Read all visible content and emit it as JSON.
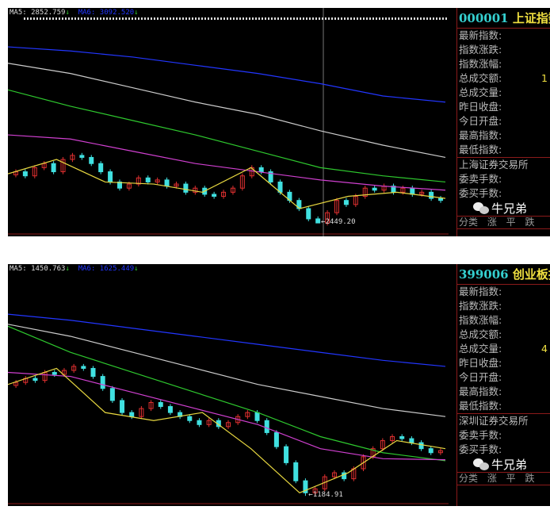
{
  "panels": [
    {
      "ma5_label": "MA5: 2852.759",
      "ma5_arrow": "↓",
      "ma6_label": "MA6: 3092.520",
      "ma6_arrow": "↓",
      "low_label": "2449.20",
      "code": "000001",
      "name": "上证指数",
      "fields": [
        {
          "label": "最新指数:",
          "value": ""
        },
        {
          "label": "指数涨跌:",
          "value": ""
        },
        {
          "label": "指数涨幅:",
          "value": ""
        },
        {
          "label": "总成交额:",
          "value": "1"
        },
        {
          "label": "总成交量:",
          "value": ""
        },
        {
          "label": "昨日收盘:",
          "value": ""
        },
        {
          "label": "今日开盘:",
          "value": ""
        },
        {
          "label": "最高指数:",
          "value": ""
        },
        {
          "label": "最低指数:",
          "value": ""
        }
      ],
      "exchange": "上海证券交易所",
      "orders": [
        "委卖手数:",
        "委买手数:"
      ],
      "table_header": "分类 涨 平 跌",
      "chart_data": {
        "type": "candlestick",
        "ylim": [
          2400,
          3500
        ],
        "low": 2449.2,
        "closes": [
          2700,
          2680,
          2720,
          2740,
          2700,
          2760,
          2780,
          2770,
          2740,
          2700,
          2650,
          2620,
          2640,
          2670,
          2650,
          2660,
          2630,
          2640,
          2600,
          2620,
          2590,
          2580,
          2600,
          2620,
          2680,
          2720,
          2700,
          2650,
          2600,
          2560,
          2520,
          2470,
          2450,
          2500,
          2560,
          2540,
          2580,
          2620,
          2610,
          2630,
          2600,
          2620,
          2590,
          2600,
          2570,
          2560
        ],
        "ma_blue": [
          3310,
          3290,
          3260,
          3220,
          3180,
          3130,
          3070,
          3040
        ],
        "ma_white": [
          3230,
          3180,
          3110,
          3040,
          2980,
          2900,
          2830,
          2770
        ],
        "ma_green": [
          3100,
          3020,
          2950,
          2880,
          2800,
          2720,
          2680,
          2650
        ],
        "ma_magenta": [
          2880,
          2860,
          2800,
          2740,
          2700,
          2660,
          2630,
          2610
        ],
        "ma_yellow": [
          2690,
          2760,
          2650,
          2640,
          2600,
          2720,
          2520,
          2580,
          2600,
          2570
        ]
      }
    },
    {
      "ma5_label": "MA5: 1450.763",
      "ma5_arrow": "↓",
      "ma6_label": "MA6: 1625.449",
      "ma6_arrow": "↓",
      "low_label": "1184.91",
      "code": "399006",
      "name": "创业板指",
      "fields": [
        {
          "label": "最新指数:",
          "value": ""
        },
        {
          "label": "指数涨跌:",
          "value": ""
        },
        {
          "label": "指数涨幅:",
          "value": ""
        },
        {
          "label": "总成交额:",
          "value": ""
        },
        {
          "label": "总成交量:",
          "value": "4"
        },
        {
          "label": "昨日收盘:",
          "value": ""
        },
        {
          "label": "今日开盘:",
          "value": ""
        },
        {
          "label": "最高指数:",
          "value": ""
        },
        {
          "label": "最低指数:",
          "value": ""
        }
      ],
      "exchange": "深圳证券交易所",
      "orders": [
        "委卖手数:",
        "委买手数:"
      ],
      "table_header": "分类 涨 平 跌",
      "chart_data": {
        "type": "candlestick",
        "ylim": [
          1150,
          2300
        ],
        "low": 1184.91,
        "closes": [
          1750,
          1770,
          1760,
          1800,
          1790,
          1810,
          1830,
          1820,
          1780,
          1720,
          1660,
          1600,
          1580,
          1620,
          1650,
          1630,
          1600,
          1580,
          1560,
          1540,
          1560,
          1530,
          1550,
          1580,
          1600,
          1560,
          1500,
          1430,
          1350,
          1260,
          1200,
          1220,
          1280,
          1300,
          1270,
          1320,
          1380,
          1420,
          1460,
          1480,
          1470,
          1450,
          1420,
          1400,
          1410
        ],
        "ma_blue": [
          2090,
          2060,
          2020,
          1980,
          1940,
          1900,
          1860,
          1830
        ],
        "ma_white": [
          2040,
          1980,
          1900,
          1820,
          1740,
          1680,
          1620,
          1580
        ],
        "ma_green": [
          2030,
          1900,
          1800,
          1700,
          1600,
          1480,
          1400,
          1360
        ],
        "ma_magenta": [
          1800,
          1780,
          1700,
          1620,
          1540,
          1420,
          1370,
          1365
        ],
        "ma_yellow": [
          1740,
          1820,
          1600,
          1560,
          1600,
          1420,
          1200,
          1300,
          1460,
          1420
        ]
      }
    }
  ],
  "watermark": "牛兄弟",
  "colors": {
    "blue": "#2236ff",
    "white": "#cccccc",
    "green": "#2ec82e",
    "magenta": "#d040d0",
    "yellow": "#e8d840",
    "up": "#e03030",
    "down": "#40e0e0"
  }
}
